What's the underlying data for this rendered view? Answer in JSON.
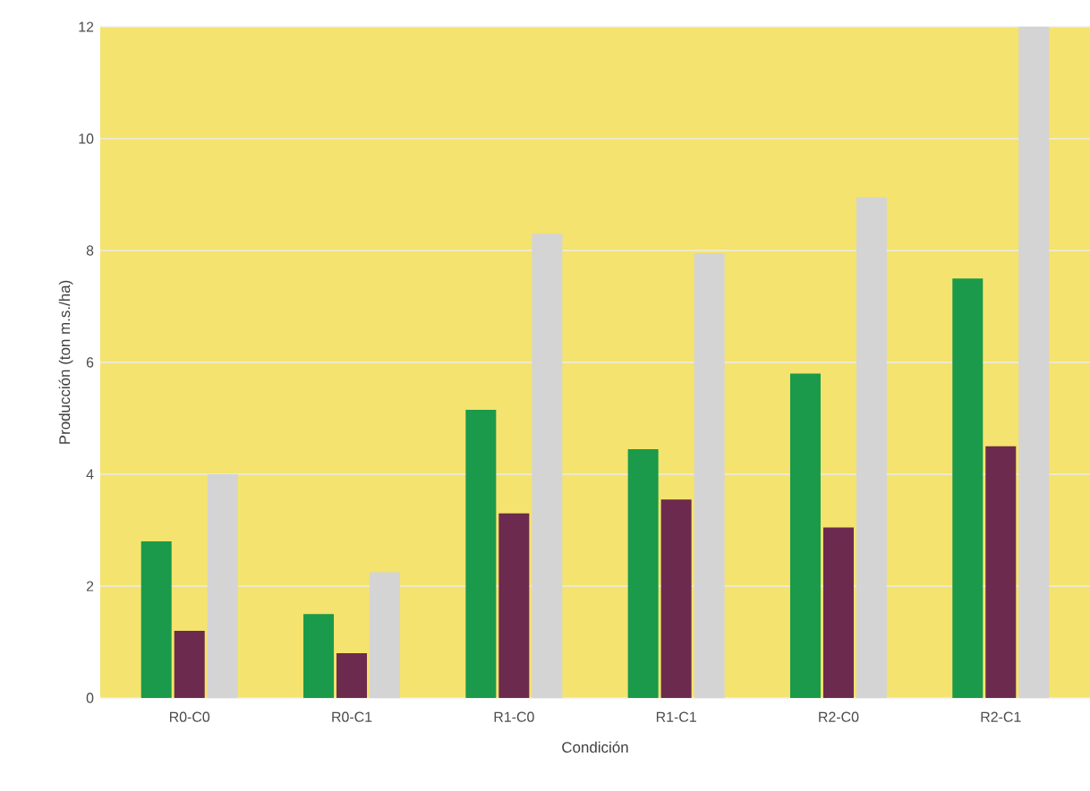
{
  "chart_data": {
    "type": "bar",
    "xlabel": "Condición",
    "ylabel": "Producción (ton m.s./ha)",
    "categories": [
      "R0-C0",
      "R0-C1",
      "R1-C0",
      "R1-C1",
      "R2-C0",
      "R2-C1"
    ],
    "series": [
      {
        "color": "#1a9a4a",
        "values": [
          2.8,
          1.5,
          5.15,
          4.45,
          5.8,
          7.5
        ]
      },
      {
        "color": "#6b2a4e",
        "values": [
          1.2,
          0.8,
          3.3,
          3.55,
          3.05,
          4.5
        ]
      },
      {
        "color": "#d4d4d4",
        "values": [
          4.0,
          2.25,
          8.3,
          7.95,
          8.95,
          12.0
        ]
      }
    ],
    "ylim": [
      0,
      12
    ],
    "yticks": [
      0,
      2,
      4,
      6,
      8,
      10,
      12
    ],
    "grid": "y"
  }
}
